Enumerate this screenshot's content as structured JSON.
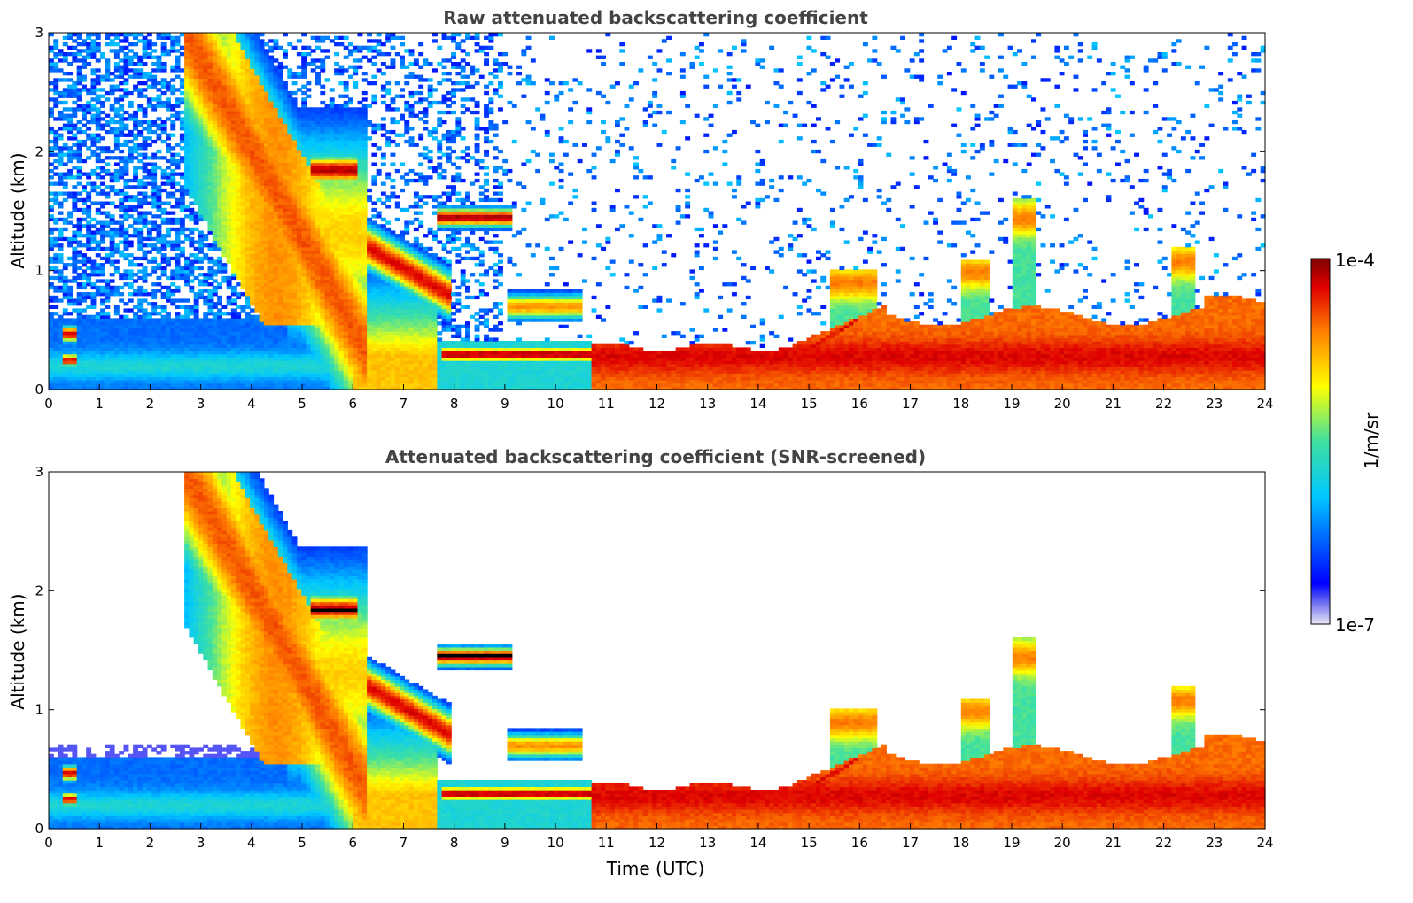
{
  "chart_data": [
    {
      "type": "heatmap",
      "title": "Raw attenuated backscattering coefficient",
      "xlabel": "",
      "ylabel": "Altitude (km)",
      "xlim": [
        0,
        24
      ],
      "ylim": [
        0,
        3
      ],
      "x_ticks": [
        "0",
        "1",
        "2",
        "3",
        "4",
        "5",
        "6",
        "7",
        "8",
        "9",
        "10",
        "11",
        "12",
        "13",
        "14",
        "15",
        "16",
        "17",
        "18",
        "19",
        "20",
        "21",
        "22",
        "23",
        "24"
      ],
      "y_ticks": [
        "0",
        "1",
        "2",
        "3"
      ],
      "screened": false
    },
    {
      "type": "heatmap",
      "title": "Attenuated backscattering coefficient (SNR-screened)",
      "xlabel": "Time (UTC)",
      "ylabel": "Altitude (km)",
      "xlim": [
        0,
        24
      ],
      "ylim": [
        0,
        3
      ],
      "x_ticks": [
        "0",
        "1",
        "2",
        "3",
        "4",
        "5",
        "6",
        "7",
        "8",
        "9",
        "10",
        "11",
        "12",
        "13",
        "14",
        "15",
        "16",
        "17",
        "18",
        "19",
        "20",
        "21",
        "22",
        "23",
        "24"
      ],
      "y_ticks": [
        "0",
        "1",
        "2",
        "3"
      ],
      "screened": true
    }
  ],
  "colorbar": {
    "label": "1/m/sr",
    "max_label": "1e-4",
    "min_label": "1e-7",
    "scale": "log",
    "colormap": "jet"
  }
}
